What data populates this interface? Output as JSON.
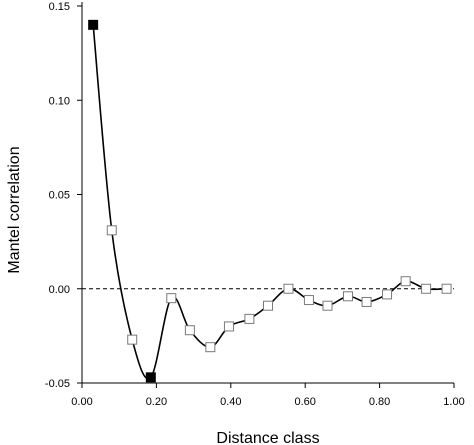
{
  "chart_data": {
    "type": "scatter",
    "title": "",
    "xlabel": "Distance class",
    "ylabel": "Mantel correlation",
    "xlim": [
      0.0,
      1.0
    ],
    "ylim": [
      -0.05,
      0.15
    ],
    "x_ticks": [
      "0.00",
      "0.20",
      "0.40",
      "0.60",
      "0.80",
      "1.00"
    ],
    "y_ticks": [
      "-0.05",
      "0.00",
      "0.05",
      "0.10",
      "0.15"
    ],
    "reference_line": {
      "y": 0.0,
      "style": "dashed"
    },
    "smooth_curve": true,
    "marker_colors": {
      "significant": "#000000",
      "non_significant": "#ffffff"
    },
    "line_color": "#000000",
    "series": [
      {
        "points": [
          {
            "x": 0.03,
            "y": 0.14,
            "significant": true
          },
          {
            "x": 0.08,
            "y": 0.031,
            "significant": false
          },
          {
            "x": 0.135,
            "y": -0.027,
            "significant": false
          },
          {
            "x": 0.185,
            "y": -0.047,
            "significant": true
          },
          {
            "x": 0.24,
            "y": -0.005,
            "significant": false
          },
          {
            "x": 0.29,
            "y": -0.022,
            "significant": false
          },
          {
            "x": 0.345,
            "y": -0.031,
            "significant": false
          },
          {
            "x": 0.395,
            "y": -0.02,
            "significant": false
          },
          {
            "x": 0.45,
            "y": -0.016,
            "significant": false
          },
          {
            "x": 0.5,
            "y": -0.009,
            "significant": false
          },
          {
            "x": 0.555,
            "y": 0.0,
            "significant": false
          },
          {
            "x": 0.61,
            "y": -0.006,
            "significant": false
          },
          {
            "x": 0.66,
            "y": -0.009,
            "significant": false
          },
          {
            "x": 0.715,
            "y": -0.004,
            "significant": false
          },
          {
            "x": 0.765,
            "y": -0.007,
            "significant": false
          },
          {
            "x": 0.82,
            "y": -0.003,
            "significant": false
          },
          {
            "x": 0.87,
            "y": 0.004,
            "significant": false
          },
          {
            "x": 0.925,
            "y": 0.0,
            "significant": false
          },
          {
            "x": 0.98,
            "y": 0.0,
            "significant": false
          }
        ]
      }
    ]
  }
}
